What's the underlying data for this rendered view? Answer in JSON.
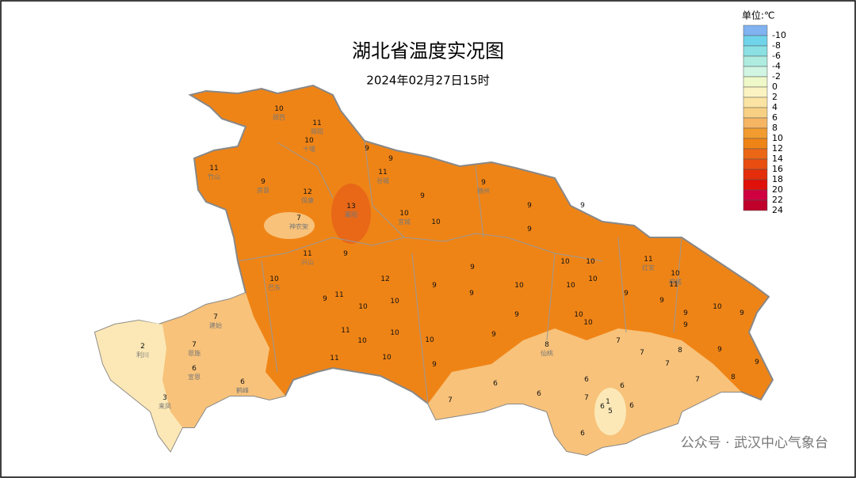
{
  "header": {
    "title": "湖北省温度实况图",
    "subtitle": "2024年02月27日15时"
  },
  "legend": {
    "unit": "单位:℃",
    "items": [
      {
        "value": -10,
        "color": "#80b3f0"
      },
      {
        "value": -8,
        "color": "#6fd3ea"
      },
      {
        "value": -6,
        "color": "#8ae0e3"
      },
      {
        "value": -4,
        "color": "#aeece0"
      },
      {
        "value": -2,
        "color": "#d0f5e2"
      },
      {
        "value": 0,
        "color": "#eef8c8"
      },
      {
        "value": 2,
        "color": "#fbf3c2"
      },
      {
        "value": 4,
        "color": "#fbe4a3"
      },
      {
        "value": 6,
        "color": "#f8d083"
      },
      {
        "value": 8,
        "color": "#f5b563"
      },
      {
        "value": 10,
        "color": "#f29b2f"
      },
      {
        "value": 12,
        "color": "#ef8416"
      },
      {
        "value": 14,
        "color": "#eb6716"
      },
      {
        "value": 16,
        "color": "#e84e10"
      },
      {
        "value": 18,
        "color": "#e42d0a"
      },
      {
        "value": 20,
        "color": "#e0100a"
      },
      {
        "value": 22,
        "color": "#d00040"
      },
      {
        "value": 24,
        "color": "#c0002a"
      }
    ]
  },
  "stations": [
    {
      "name": "郧西",
      "value": 10
    },
    {
      "name": "郧阳",
      "value": 11
    },
    {
      "name": "十堰",
      "value": 10
    },
    {
      "value": 9
    },
    {
      "value": 9
    },
    {
      "name": "谷城",
      "value": 11
    },
    {
      "name": "竹山",
      "value": 11
    },
    {
      "name": "房县",
      "value": 9
    },
    {
      "name": "保康",
      "value": 12
    },
    {
      "name": "襄阳",
      "value": 13
    },
    {
      "value": 9
    },
    {
      "name": "随州",
      "value": 9
    },
    {
      "name": "宜城",
      "value": 10
    },
    {
      "value": 10
    },
    {
      "name": "神农架",
      "value": 7
    },
    {
      "value": 9
    },
    {
      "value": 9
    },
    {
      "value": 9
    },
    {
      "name": "兴山",
      "value": 11
    },
    {
      "value": 9
    },
    {
      "name": "巴东",
      "value": 10
    },
    {
      "value": 12
    },
    {
      "value": 9
    },
    {
      "value": 10
    },
    {
      "value": 10
    },
    {
      "value": 10
    },
    {
      "name": "红安",
      "value": 11
    },
    {
      "name": "麻城",
      "value": 10
    },
    {
      "value": 9
    },
    {
      "value": 9
    },
    {
      "value": 11
    },
    {
      "value": 9
    },
    {
      "value": 10
    },
    {
      "value": 10
    },
    {
      "value": 10
    },
    {
      "value": 10
    },
    {
      "value": 9
    },
    {
      "value": 9
    },
    {
      "value": 11
    },
    {
      "value": 10
    },
    {
      "value": 9
    },
    {
      "value": 9
    },
    {
      "name": "建始",
      "value": 7
    },
    {
      "value": 9
    },
    {
      "value": 10
    },
    {
      "value": 9
    },
    {
      "value": 10
    },
    {
      "value": 11
    },
    {
      "value": 10
    },
    {
      "value": 10
    },
    {
      "value": 9
    },
    {
      "name": "利川",
      "value": 2
    },
    {
      "name": "恩施",
      "value": 7
    },
    {
      "name": "宣恩",
      "value": 6
    },
    {
      "value": 7
    },
    {
      "name": "仙桃",
      "value": 8
    },
    {
      "value": 10
    },
    {
      "value": 7
    },
    {
      "value": 8
    },
    {
      "value": 7
    },
    {
      "value": 9
    },
    {
      "value": 9
    },
    {
      "value": 11
    },
    {
      "value": 10
    },
    {
      "value": 9
    },
    {
      "name": "鹤峰",
      "value": 6
    },
    {
      "name": "来凤",
      "value": 3
    },
    {
      "value": 6
    },
    {
      "value": 6
    },
    {
      "value": 7
    },
    {
      "value": 8
    },
    {
      "value": 6
    },
    {
      "value": 7
    },
    {
      "value": 6
    },
    {
      "value": 1
    },
    {
      "value": 6
    },
    {
      "value": 6
    },
    {
      "value": 7
    },
    {
      "value": 6
    },
    {
      "value": 5
    }
  ],
  "watermark": {
    "text": "公众号 · 武汉中心气象台"
  }
}
